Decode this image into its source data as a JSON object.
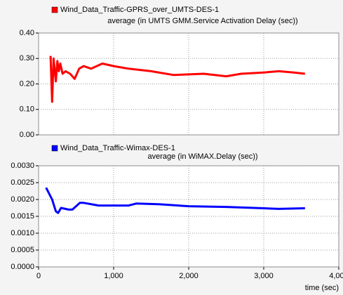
{
  "chart_data": [
    {
      "type": "line",
      "title": "average (in UMTS GMM.Service Activation Delay (sec))",
      "x": [
        160,
        180,
        200,
        230,
        250,
        270,
        290,
        320,
        360,
        420,
        480,
        540,
        600,
        700,
        850,
        1000,
        1200,
        1500,
        1800,
        2200,
        2500,
        2700,
        3000,
        3200,
        3400,
        3550
      ],
      "series": [
        {
          "name": "Wind_Data_Traffic-GPRS_over_UMTS-DES-1",
          "color": "#ff0000",
          "values": [
            0.31,
            0.13,
            0.3,
            0.21,
            0.29,
            0.25,
            0.28,
            0.24,
            0.25,
            0.24,
            0.22,
            0.26,
            0.27,
            0.26,
            0.28,
            0.27,
            0.26,
            0.25,
            0.235,
            0.24,
            0.23,
            0.24,
            0.245,
            0.25,
            0.245,
            0.24
          ]
        }
      ],
      "xlim": [
        0,
        4000
      ],
      "ylim": [
        0,
        0.4
      ],
      "yticks": [
        {
          "value": 0,
          "label": "0.00"
        },
        {
          "value": 0.1,
          "label": "0.10"
        },
        {
          "value": 0.2,
          "label": "0.20"
        },
        {
          "value": 0.3,
          "label": "0.30"
        },
        {
          "value": 0.4,
          "label": "0.40"
        }
      ],
      "grid": true
    },
    {
      "type": "line",
      "title": "average (in WiMAX.Delay (sec))",
      "x_label": "time (sec)",
      "x": [
        100,
        180,
        230,
        260,
        300,
        400,
        450,
        550,
        600,
        800,
        1200,
        1300,
        1600,
        2000,
        2500,
        3000,
        3200,
        3550
      ],
      "series": [
        {
          "name": "Wind_Data_Traffic-Wimax-DES-1",
          "color": "#0000ff",
          "values": [
            0.00235,
            0.002,
            0.00165,
            0.0016,
            0.00175,
            0.0017,
            0.0017,
            0.0019,
            0.0019,
            0.00182,
            0.00182,
            0.00188,
            0.00186,
            0.0018,
            0.00178,
            0.00174,
            0.00172,
            0.00174
          ]
        }
      ],
      "xlim": [
        0,
        4000
      ],
      "xticks": [
        0,
        {
          "value": 1000,
          "label": "1,000"
        },
        {
          "value": 2000,
          "label": "2,000"
        },
        {
          "value": 3000,
          "label": "3,000"
        },
        {
          "value": 4000,
          "label": "4,000"
        }
      ],
      "ylim": [
        0,
        0.003
      ],
      "yticks": [
        {
          "value": 0,
          "label": "0.0000"
        },
        {
          "value": 0.0005,
          "label": "0.0005"
        },
        {
          "value": 0.001,
          "label": "0.0010"
        },
        {
          "value": 0.0015,
          "label": "0.0015"
        },
        {
          "value": 0.002,
          "label": "0.0020"
        },
        {
          "value": 0.0025,
          "label": "0.0025"
        },
        {
          "value": 0.003,
          "label": "0.0030"
        }
      ],
      "grid": true
    }
  ]
}
